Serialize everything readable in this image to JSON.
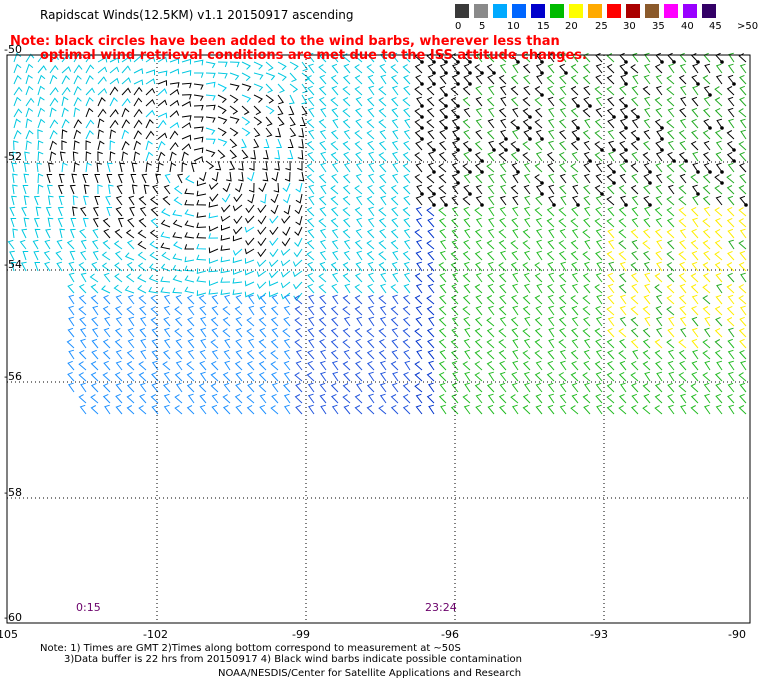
{
  "title": "Rapidscat Winds(12.5KM) v1.1 20150917 ascending",
  "note_line1": "Note: black circles have been added to the wind barbs, wherever less than",
  "note_line2": "optimal wind retrieval conditions are met due to the ISS attitude changes.",
  "legend": {
    "labels": [
      "0",
      "5",
      "10",
      "15",
      "20",
      "25",
      "30",
      "35",
      "40",
      "45",
      ">50 knots"
    ],
    "colors": [
      "#3a3a3a",
      "#8a8a8a",
      "#00aaff",
      "#0066ff",
      "#0000cc",
      "#00bb00",
      "#ffff00",
      "#ffaa00",
      "#ff0000",
      "#aa0000",
      "#8b5a2b",
      "#ff00ff",
      "#9900ff",
      "#330066"
    ]
  },
  "lat_labels": [
    "-50",
    "-52",
    "-54",
    "-56",
    "-58",
    "-60"
  ],
  "lon_labels": [
    "-105",
    "-102",
    "-99",
    "-96",
    "-93",
    "-90"
  ],
  "times": {
    "left": "0:15",
    "right": "23:24"
  },
  "footer": {
    "line1": "Note: 1) Times are GMT 2)Times along bottom correspond to measurement at ~50S",
    "line2": "3)Data buffer is 22 hrs from 20150917 4) Black wind barbs indicate possible contamination",
    "line3": "NOAA/NESDIS/Center for Satellite Applications and Research"
  }
}
